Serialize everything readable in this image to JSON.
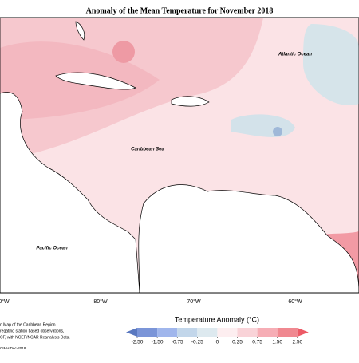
{
  "title": "Anomaly of the Mean Temperature for November 2018",
  "map_labels": {
    "atlantic": "Atlantic Ocean",
    "caribbean": "Caribbean Sea",
    "pacific": "Pacific Ocean"
  },
  "longitude_labels": [
    "0°W",
    "80°W",
    "70°W",
    "60°W"
  ],
  "footnote": [
    "n Map of the Caribbean Region",
    "regating station based observations,",
    "CF, with NCEP/NCAR Reanalysis Data."
  ],
  "credit": "CIMH Dec-2018",
  "legend": {
    "title": "Temperature Anomaly (°C)",
    "ticks": [
      {
        "value": -2.5,
        "label": "-2.50"
      },
      {
        "value": -1.5,
        "label": "-1.50"
      },
      {
        "value": -0.75,
        "label": "-0.75"
      },
      {
        "value": -0.25,
        "label": "-0.25"
      },
      0,
      {
        "value": 0.25,
        "label": "0.25"
      },
      {
        "value": 0.75,
        "label": "0.75"
      },
      {
        "value": 1.5,
        "label": "1.50"
      },
      {
        "value": 2.5,
        "label": "2.50"
      }
    ],
    "colors": [
      "#5a78c0",
      "#7b95d8",
      "#a0b6ec",
      "#c2d6ea",
      "#dde9ef",
      "#fdeef0",
      "#f9d3d8",
      "#f6adb5",
      "#f08890",
      "#ec5a66"
    ]
  }
}
